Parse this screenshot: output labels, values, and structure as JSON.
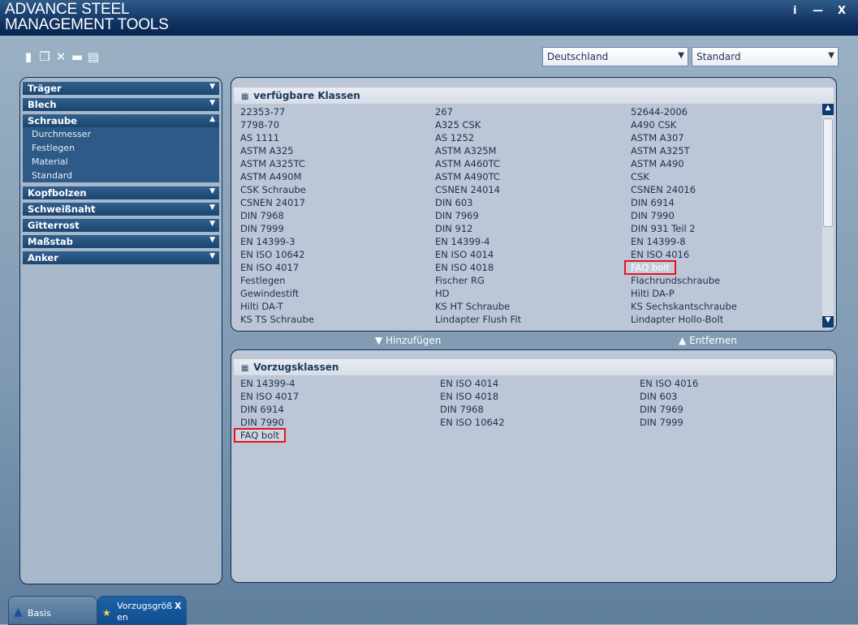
{
  "app": {
    "title_line1": "ADVANCE STEEL",
    "title_line2": "MANAGEMENT TOOLS",
    "info": "i",
    "minimize": "—",
    "close": "X"
  },
  "toolbar": {
    "icons": [
      "new-icon",
      "copy-icon",
      "delete-icon",
      "open-icon",
      "save-icon"
    ]
  },
  "filters": {
    "country": "Deutschland",
    "standard": "Standard"
  },
  "sidebar": {
    "items": [
      {
        "label": "Träger",
        "expanded": false
      },
      {
        "label": "Blech",
        "expanded": false
      },
      {
        "label": "Schraube",
        "expanded": true,
        "children": [
          "Durchmesser",
          "Festlegen",
          "Material",
          "Standard"
        ]
      },
      {
        "label": "Kopfbolzen",
        "expanded": false
      },
      {
        "label": "Schweißnaht",
        "expanded": false
      },
      {
        "label": "Gitterrost",
        "expanded": false
      },
      {
        "label": "Maßstab",
        "expanded": false
      },
      {
        "label": "Anker",
        "expanded": false
      }
    ]
  },
  "available": {
    "title": "verfügbare Klassen",
    "items": [
      "22353-77",
      "267",
      "52644-2006",
      "7798-70",
      "A325 CSK",
      "A490 CSK",
      "AS 1111",
      "AS 1252",
      "ASTM A307",
      "ASTM A325",
      "ASTM A325M",
      "ASTM A325T",
      "ASTM A325TC",
      "ASTM A460TC",
      "ASTM A490",
      "ASTM A490M",
      "ASTM A490TC",
      "CSK",
      "CSK Schraube",
      "CSNEN 24014",
      "CSNEN 24016",
      "CSNEN 24017",
      "DIN 603",
      "DIN 6914",
      "DIN 7968",
      "DIN 7969",
      "DIN 7990",
      "DIN 7999",
      "DIN 912",
      "DIN 931 Teil 2",
      "EN 14399-3",
      "EN 14399-4",
      "EN 14399-8",
      "EN ISO 10642",
      "EN ISO 4014",
      "EN ISO 4016",
      "EN ISO 4017",
      "EN ISO 4018",
      "FAQ bolt",
      "Festlegen",
      "Fischer RG",
      "Flachrundschraube",
      "Gewindestift",
      "HD",
      "Hilti DA-P",
      "Hilti DA-T",
      "KS HT Schraube",
      "KS Sechskantschraube",
      "KS TS Schraube",
      "Lindapter Flush Fit",
      "Lindapter Hollo-Bolt"
    ],
    "highlighted": "FAQ bolt"
  },
  "actions": {
    "add": "Hinzufügen",
    "remove": "Entfernen"
  },
  "preferred": {
    "title": "Vorzugsklassen",
    "items": [
      "EN 14399-4",
      "EN ISO 4014",
      "EN ISO 4016",
      "EN ISO 4017",
      "EN ISO 4018",
      "DIN 603",
      "DIN 6914",
      "DIN 7968",
      "DIN 7969",
      "DIN 7990",
      "EN ISO 10642",
      "DIN 7999",
      "FAQ bolt"
    ],
    "highlighted": "FAQ bolt"
  },
  "tabs": [
    {
      "label": "Basis"
    },
    {
      "label": "Vorzugsgröß en",
      "close": "X"
    }
  ],
  "colors": {
    "titlebar": "#0e2f5e",
    "accordion": "#1b456f",
    "highlight": "#e4141b"
  }
}
